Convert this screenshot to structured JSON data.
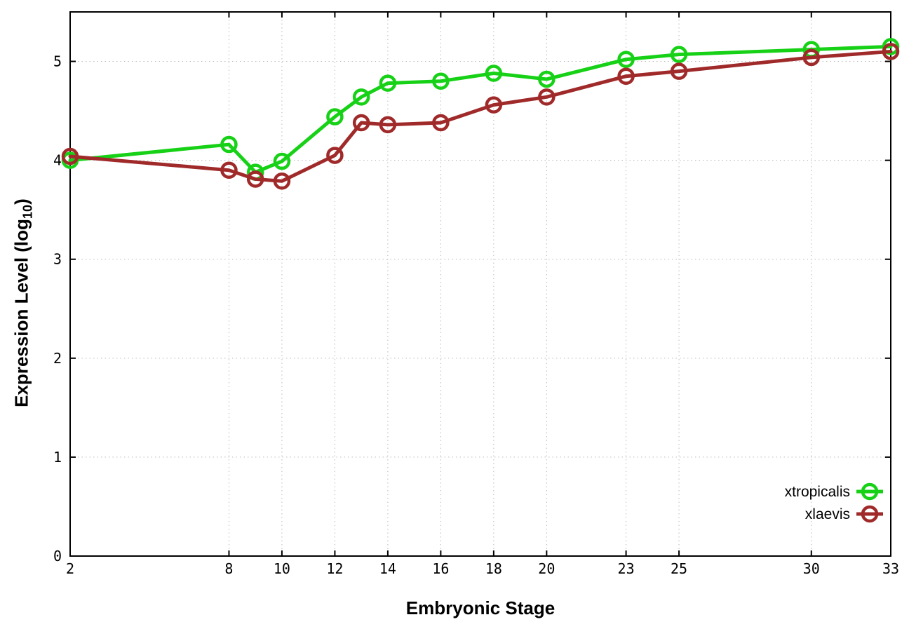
{
  "chart_data": {
    "type": "line",
    "title": "",
    "xlabel": "Embryonic Stage",
    "ylabel": "Expression Level (log10)",
    "ylabel_parts": {
      "prefix": "Expression Level (log",
      "sub": "10",
      "suffix": ")"
    },
    "xlim": [
      2,
      33
    ],
    "ylim": [
      0,
      5.5
    ],
    "x_ticks": [
      2,
      8,
      10,
      12,
      14,
      16,
      18,
      20,
      23,
      25,
      30,
      33
    ],
    "y_ticks": [
      0,
      1,
      2,
      3,
      4,
      5
    ],
    "grid": true,
    "grid_style": "dotted",
    "legend_position": "inside-right-bottom",
    "marker": "open-circle",
    "colors": {
      "xtropicalis": "#17d117",
      "xlaevis": "#a02a2a",
      "grid": "#b9b9b9",
      "border": "#000000"
    },
    "x": [
      2,
      8,
      9,
      10,
      12,
      13,
      14,
      16,
      18,
      20,
      23,
      25,
      30,
      33
    ],
    "series": [
      {
        "name": "xtropicalis",
        "color": "#17d117",
        "values": [
          4.0,
          4.16,
          3.88,
          3.99,
          4.44,
          4.64,
          4.78,
          4.8,
          4.88,
          4.82,
          5.02,
          5.07,
          5.12,
          5.15
        ]
      },
      {
        "name": "xlaevis",
        "color": "#a02a2a",
        "values": [
          4.04,
          3.9,
          3.81,
          3.79,
          4.05,
          4.38,
          4.36,
          4.38,
          4.56,
          4.64,
          4.85,
          4.9,
          5.04,
          5.1
        ]
      }
    ]
  }
}
